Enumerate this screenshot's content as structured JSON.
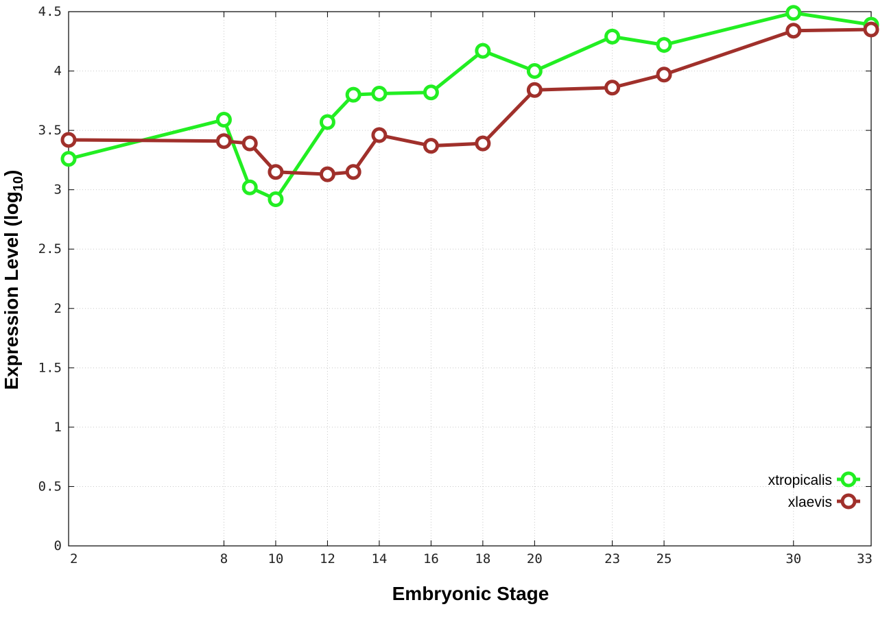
{
  "chart_data": {
    "type": "line",
    "title": "",
    "xlabel": "Embryonic Stage",
    "ylabel_main": "Expression Level (log",
    "ylabel_sub": "10",
    "ylabel_close": ")",
    "x_ticks": [
      2,
      8,
      10,
      12,
      14,
      16,
      18,
      20,
      23,
      25,
      30,
      33
    ],
    "x_tick_labels": [
      "2",
      "8",
      "10",
      "12",
      "14",
      "16",
      "18",
      "20",
      "23",
      "25",
      "30",
      "33"
    ],
    "y_ticks": [
      0,
      0.5,
      1,
      1.5,
      2,
      2.5,
      3,
      3.5,
      4,
      4.5
    ],
    "y_tick_labels": [
      "0",
      "0.5",
      "1",
      "1.5",
      "2",
      "2.5",
      "3",
      "3.5",
      "4",
      "4.5"
    ],
    "ylim": [
      0,
      4.5
    ],
    "grid": true,
    "legend_position": "bottom-right",
    "series": [
      {
        "name": "xtropicalis",
        "color": "#22ee22",
        "points": [
          {
            "stage": "2",
            "value": 3.26
          },
          {
            "stage": "8",
            "value": 3.59
          },
          {
            "stage": "9",
            "value": 3.02
          },
          {
            "stage": "10",
            "value": 2.92
          },
          {
            "stage": "12",
            "value": 3.57
          },
          {
            "stage": "13",
            "value": 3.8
          },
          {
            "stage": "14",
            "value": 3.81
          },
          {
            "stage": "16",
            "value": 3.82
          },
          {
            "stage": "18",
            "value": 4.17
          },
          {
            "stage": "20",
            "value": 4.0
          },
          {
            "stage": "23",
            "value": 4.29
          },
          {
            "stage": "25",
            "value": 4.22
          },
          {
            "stage": "30",
            "value": 4.49
          },
          {
            "stage": "33",
            "value": 4.39
          }
        ]
      },
      {
        "name": "xlaevis",
        "color": "#a0302b",
        "points": [
          {
            "stage": "2",
            "value": 3.42
          },
          {
            "stage": "8",
            "value": 3.41
          },
          {
            "stage": "9",
            "value": 3.39
          },
          {
            "stage": "10",
            "value": 3.15
          },
          {
            "stage": "12",
            "value": 3.13
          },
          {
            "stage": "13",
            "value": 3.15
          },
          {
            "stage": "14",
            "value": 3.46
          },
          {
            "stage": "16",
            "value": 3.37
          },
          {
            "stage": "18",
            "value": 3.39
          },
          {
            "stage": "20",
            "value": 3.84
          },
          {
            "stage": "23",
            "value": 3.86
          },
          {
            "stage": "25",
            "value": 3.97
          },
          {
            "stage": "30",
            "value": 4.34
          },
          {
            "stage": "33",
            "value": 4.35
          }
        ]
      }
    ]
  }
}
